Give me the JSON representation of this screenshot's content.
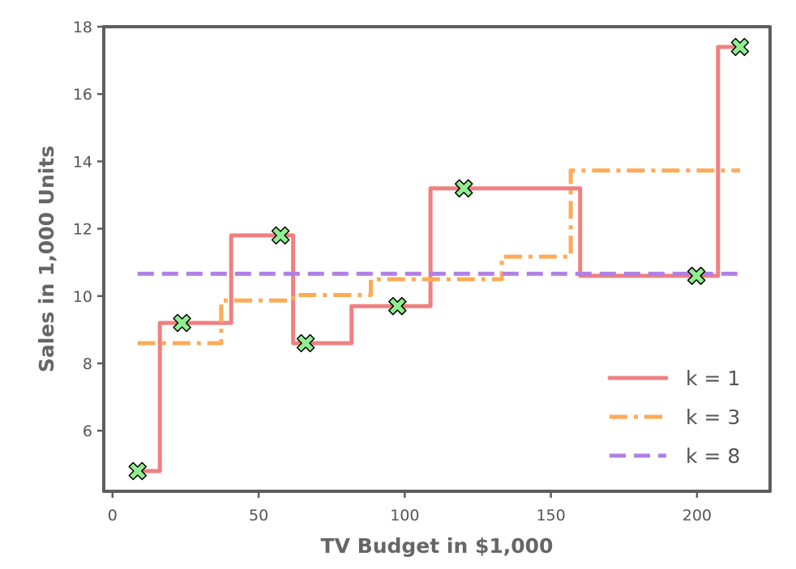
{
  "chart_data": {
    "type": "line",
    "xlabel": "TV Budget in $1,000",
    "ylabel": "Sales in 1,000 Units",
    "xlim": [
      -3,
      225
    ],
    "ylim": [
      4.2,
      18
    ],
    "xticks": [
      0,
      50,
      100,
      150,
      200
    ],
    "yticks": [
      6,
      8,
      10,
      12,
      14,
      16,
      18
    ],
    "grid": false,
    "legend": {
      "placement": "bottom-right"
    },
    "colors": {
      "frame": "#5e5e5e",
      "k1": "#f08080",
      "k3": "#ffaa55",
      "k8": "#b07fe6",
      "marker_fill": "#90ee90",
      "marker_edge": "#000000"
    },
    "points": {
      "x": [
        8.6,
        23.8,
        57.5,
        66.1,
        97.5,
        120.2,
        199.8,
        214.7
      ],
      "y": [
        4.8,
        9.2,
        11.8,
        8.6,
        9.7,
        13.2,
        10.6,
        17.4
      ]
    },
    "series": [
      {
        "name": "k = 1",
        "style": "solid",
        "x": [
          8.6,
          16.2,
          16.2,
          40.6,
          40.6,
          61.8,
          61.8,
          81.8,
          81.8,
          108.8,
          108.8,
          160.0,
          160.0,
          207.2,
          207.2,
          214.7
        ],
        "y": [
          4.8,
          4.8,
          9.2,
          9.2,
          11.8,
          11.8,
          8.6,
          8.6,
          9.7,
          9.7,
          13.2,
          13.2,
          10.6,
          10.6,
          17.4,
          17.4
        ]
      },
      {
        "name": "k = 3",
        "style": "dashdot",
        "x": [
          8.6,
          37.2,
          37.2,
          61.8,
          61.8,
          88.4,
          88.4,
          133.2,
          133.2,
          156.8,
          156.8,
          214.7
        ],
        "y": [
          8.6,
          8.6,
          9.87,
          9.87,
          10.03,
          10.03,
          10.5,
          10.5,
          11.17,
          11.17,
          13.73,
          13.73
        ]
      },
      {
        "name": "k = 8",
        "style": "dashed",
        "x": [
          8.6,
          214.7
        ],
        "y": [
          10.66,
          10.66
        ]
      }
    ]
  }
}
